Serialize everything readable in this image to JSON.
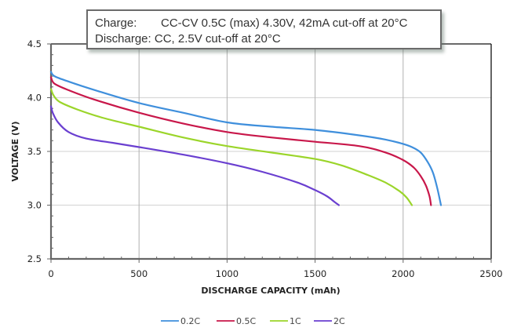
{
  "annotation": {
    "charge_label": "Charge:",
    "charge_text": "CC-CV 0.5C (max) 4.30V, 42mA cut-off at 20°C",
    "discharge_label": "Discharge:",
    "discharge_text": " CC, 2.5V cut-off at 20°C"
  },
  "chart_data": {
    "type": "line",
    "title": "",
    "xlabel": "DISCHARGE CAPACITY (mAh)",
    "ylabel": "VOLTAGE (V)",
    "xlim": [
      0,
      2500
    ],
    "ylim": [
      2.5,
      4.5
    ],
    "x_ticks": [
      "0",
      "500",
      "1000",
      "1500",
      "2000",
      "2500"
    ],
    "y_ticks": [
      "2.5",
      "3.0",
      "3.5",
      "4.0",
      "4.5"
    ],
    "x_tick_values": [
      0,
      500,
      1000,
      1500,
      2000,
      2500
    ],
    "y_tick_values": [
      2.5,
      3.0,
      3.5,
      4.0,
      4.5
    ],
    "x_minor_step": 100,
    "y_minor_step": 0.1,
    "grid": true,
    "legend_position": "bottom",
    "series": [
      {
        "name": "0.2C",
        "color": "#3f8fdc",
        "points": [
          [
            0,
            4.24
          ],
          [
            20,
            4.2
          ],
          [
            100,
            4.15
          ],
          [
            250,
            4.07
          ],
          [
            500,
            3.95
          ],
          [
            750,
            3.86
          ],
          [
            1000,
            3.77
          ],
          [
            1250,
            3.73
          ],
          [
            1500,
            3.7
          ],
          [
            1750,
            3.65
          ],
          [
            1900,
            3.61
          ],
          [
            2000,
            3.57
          ],
          [
            2050,
            3.54
          ],
          [
            2100,
            3.49
          ],
          [
            2140,
            3.4
          ],
          [
            2170,
            3.3
          ],
          [
            2195,
            3.15
          ],
          [
            2215,
            3.0
          ]
        ]
      },
      {
        "name": "0.5C",
        "color": "#c8174a",
        "points": [
          [
            0,
            4.19
          ],
          [
            20,
            4.13
          ],
          [
            100,
            4.07
          ],
          [
            250,
            3.98
          ],
          [
            500,
            3.86
          ],
          [
            750,
            3.76
          ],
          [
            1000,
            3.68
          ],
          [
            1250,
            3.63
          ],
          [
            1500,
            3.59
          ],
          [
            1750,
            3.55
          ],
          [
            1900,
            3.49
          ],
          [
            2000,
            3.42
          ],
          [
            2060,
            3.35
          ],
          [
            2100,
            3.27
          ],
          [
            2130,
            3.18
          ],
          [
            2150,
            3.08
          ],
          [
            2158,
            3.0
          ]
        ]
      },
      {
        "name": "1C",
        "color": "#9bd52a",
        "points": [
          [
            0,
            4.08
          ],
          [
            15,
            4.02
          ],
          [
            50,
            3.96
          ],
          [
            150,
            3.89
          ],
          [
            300,
            3.81
          ],
          [
            500,
            3.73
          ],
          [
            750,
            3.63
          ],
          [
            1000,
            3.55
          ],
          [
            1250,
            3.49
          ],
          [
            1500,
            3.43
          ],
          [
            1650,
            3.37
          ],
          [
            1800,
            3.28
          ],
          [
            1900,
            3.21
          ],
          [
            1980,
            3.13
          ],
          [
            2020,
            3.07
          ],
          [
            2050,
            3.0
          ]
        ]
      },
      {
        "name": "2C",
        "color": "#6a3fd0",
        "points": [
          [
            0,
            3.92
          ],
          [
            10,
            3.86
          ],
          [
            40,
            3.77
          ],
          [
            100,
            3.68
          ],
          [
            200,
            3.62
          ],
          [
            350,
            3.58
          ],
          [
            500,
            3.54
          ],
          [
            750,
            3.47
          ],
          [
            1000,
            3.39
          ],
          [
            1200,
            3.31
          ],
          [
            1400,
            3.21
          ],
          [
            1500,
            3.14
          ],
          [
            1570,
            3.08
          ],
          [
            1610,
            3.03
          ],
          [
            1635,
            3.0
          ]
        ]
      }
    ],
    "colors": {
      "axis": "#666666",
      "grid_h": "#d9d9d9",
      "grid_v": "#b0b0b0",
      "frame": "#111111"
    }
  }
}
